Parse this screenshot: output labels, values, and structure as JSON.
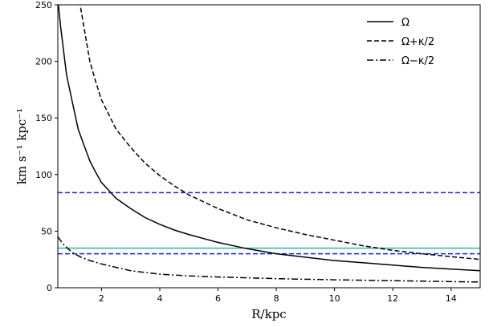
{
  "chart_data": {
    "type": "line",
    "xlabel": "R/kpc",
    "ylabel": "km s⁻¹ kpc⁻¹",
    "xlim": [
      0.5,
      15
    ],
    "ylim": [
      0,
      250
    ],
    "xticks": [
      2,
      4,
      6,
      8,
      10,
      12,
      14
    ],
    "yticks": [
      0,
      50,
      100,
      150,
      200,
      250
    ],
    "grid": false,
    "legend_position": "top-right",
    "series": [
      {
        "name": "Ω",
        "style": "solid",
        "color": "#000000",
        "x": [
          0.5,
          0.6,
          0.8,
          1.0,
          1.2,
          1.4,
          1.6,
          1.8,
          2.0,
          2.5,
          3.0,
          3.5,
          4.0,
          4.5,
          5.0,
          6.0,
          7.0,
          8.0,
          9.0,
          10.0,
          11.0,
          12.0,
          13.0,
          14.0,
          15.0
        ],
        "y": [
          255,
          230,
          188,
          164,
          140,
          126,
          112,
          102,
          93,
          79,
          70,
          62,
          56,
          51,
          47,
          40,
          34.5,
          30,
          27,
          24,
          22,
          20,
          18,
          16.5,
          15
        ]
      },
      {
        "name": "Ω+κ/2",
        "style": "dashed",
        "color": "#000000",
        "x": [
          1.2,
          1.4,
          1.6,
          1.8,
          2.0,
          2.5,
          3.0,
          3.5,
          4.0,
          4.5,
          5.0,
          6.0,
          7.0,
          8.0,
          9.0,
          10.0,
          11.0,
          12.0,
          13.0,
          14.0,
          15.0
        ],
        "y": [
          260,
          230,
          200,
          182,
          166,
          140,
          124,
          110,
          99,
          90,
          82,
          70,
          60,
          53,
          47,
          42,
          37,
          33,
          30,
          27.5,
          25
        ]
      },
      {
        "name": "Ω−κ/2",
        "style": "dashdot",
        "color": "#000000",
        "x": [
          0.5,
          0.7,
          1.0,
          1.3,
          1.6,
          2.0,
          2.5,
          3.0,
          4.0,
          5.0,
          6.0,
          7.0,
          8.0,
          9.0,
          10.0,
          11.0,
          12.0,
          13.0,
          14.0,
          15.0
        ],
        "y": [
          45,
          38,
          31,
          27,
          24,
          21,
          18,
          15,
          12,
          10.5,
          9.5,
          8.8,
          8,
          7.5,
          7,
          6.6,
          6.2,
          5.8,
          5.4,
          5
        ]
      }
    ],
    "hlines": [
      {
        "y": 84,
        "style": "dashed",
        "color": "#1f1fd6"
      },
      {
        "y": 30,
        "style": "dashed",
        "color": "#1f1fd6"
      },
      {
        "y": 35,
        "style": "solid",
        "color": "#2ab5a6"
      }
    ]
  }
}
